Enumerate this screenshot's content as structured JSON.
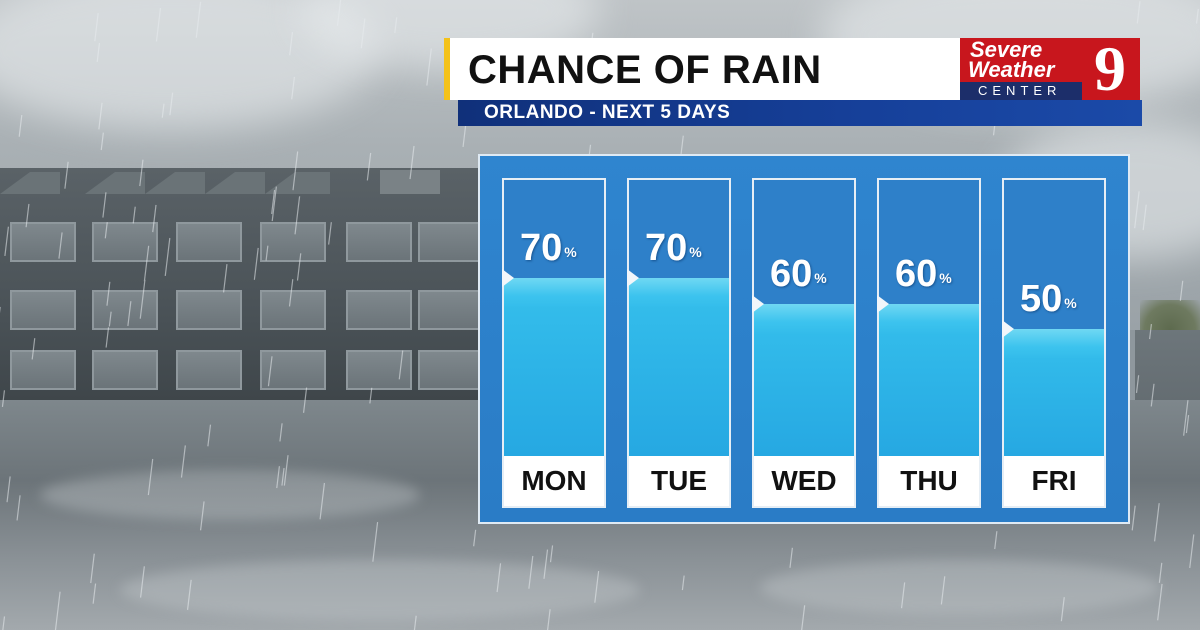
{
  "header": {
    "title": "CHANCE OF RAIN",
    "subtitle": "ORLANDO - NEXT 5 DAYS"
  },
  "logo": {
    "line1": "Severe",
    "line2": "Weather",
    "line3": "CENTER",
    "channel": "9"
  },
  "colors": {
    "title_accent": "#f4c21a",
    "subtitle_bar": "#16409a",
    "logo_red": "#c8161d",
    "panel_blue": "#2f85cf",
    "water": "#36c0ec"
  },
  "chart_data": {
    "type": "bar",
    "categories": [
      "MON",
      "TUE",
      "WED",
      "THU",
      "FRI"
    ],
    "values": [
      70,
      70,
      60,
      60,
      50
    ],
    "unit": "%",
    "ylim": [
      0,
      100
    ],
    "title": "CHANCE OF RAIN",
    "subtitle": "ORLANDO - NEXT 5 DAYS"
  }
}
